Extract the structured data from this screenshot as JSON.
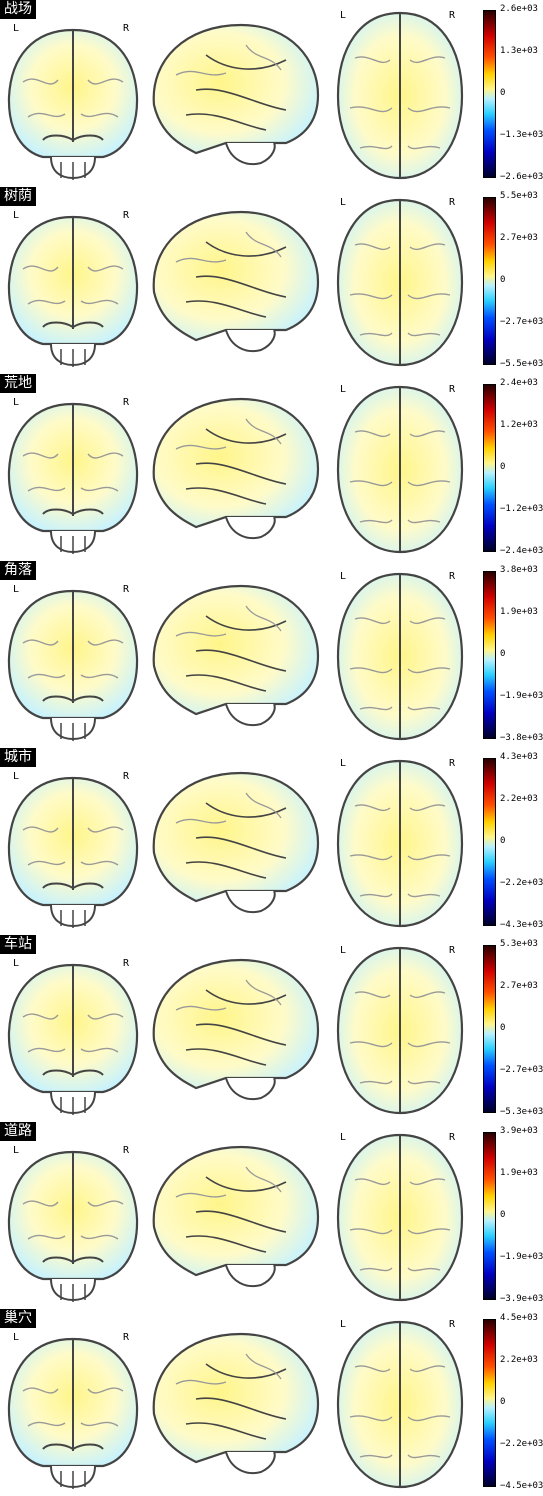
{
  "side_labels": {
    "left": "L",
    "right": "R"
  },
  "panels": [
    {
      "title": "战场",
      "colorbar": [
        "2.6e+03",
        "1.3e+03",
        "0",
        "−1.3e+03",
        "−2.6e+03"
      ]
    },
    {
      "title": "树荫",
      "colorbar": [
        "5.5e+03",
        "2.7e+03",
        "0",
        "−2.7e+03",
        "−5.5e+03"
      ]
    },
    {
      "title": "荒地",
      "colorbar": [
        "2.4e+03",
        "1.2e+03",
        "0",
        "−1.2e+03",
        "−2.4e+03"
      ]
    },
    {
      "title": "角落",
      "colorbar": [
        "3.8e+03",
        "1.9e+03",
        "0",
        "−1.9e+03",
        "−3.8e+03"
      ]
    },
    {
      "title": "城市",
      "colorbar": [
        "4.3e+03",
        "2.2e+03",
        "0",
        "−2.2e+03",
        "−4.3e+03"
      ]
    },
    {
      "title": "车站",
      "colorbar": [
        "5.3e+03",
        "2.7e+03",
        "0",
        "−2.7e+03",
        "−5.3e+03"
      ]
    },
    {
      "title": "道路",
      "colorbar": [
        "3.9e+03",
        "1.9e+03",
        "0",
        "−1.9e+03",
        "−3.9e+03"
      ]
    },
    {
      "title": "巢穴",
      "colorbar": [
        "4.5e+03",
        "2.2e+03",
        "0",
        "−2.2e+03",
        "−4.5e+03"
      ]
    }
  ],
  "colors": {
    "positive_hot": "#d00000",
    "negative_cold": "#0000c0",
    "neutral_yellow": "#fff58a",
    "neutral_cyan": "#b6f0ff"
  }
}
